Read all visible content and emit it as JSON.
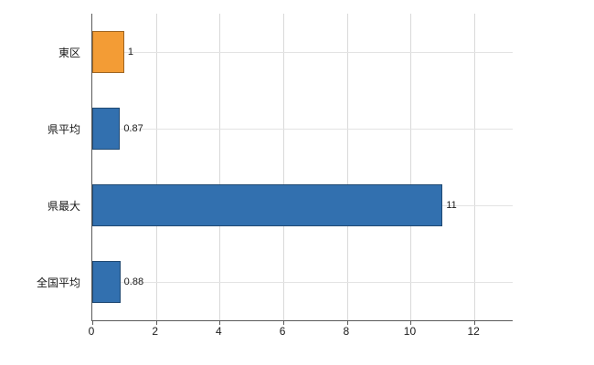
{
  "chart_data": {
    "type": "bar",
    "orientation": "horizontal",
    "title": "",
    "xlabel": "",
    "ylabel": "",
    "categories": [
      "東区",
      "県平均",
      "県最大",
      "全国平均"
    ],
    "values": [
      1,
      0.87,
      11,
      0.88
    ],
    "value_labels": [
      "1",
      "0.87",
      "11",
      "0.88"
    ],
    "bar_colors": [
      "#F39C35",
      "#3270AF",
      "#3270AF",
      "#3270AF"
    ],
    "xlim": [
      0,
      13.2
    ],
    "xticks": [
      0,
      2,
      4,
      6,
      8,
      10,
      12
    ],
    "xtick_labels": [
      "0",
      "2",
      "4",
      "6",
      "8",
      "10",
      "12"
    ],
    "grid": "vertical gridlines at x ticks, faint horizontal gridlines at category centers",
    "legend": "none",
    "colors": {
      "highlight_bar": "#F39C35",
      "default_bar": "#3270AF",
      "axis_line": "#5a5a5a",
      "gridline": "#d9d9d9",
      "text": "#1a1a1a"
    }
  }
}
